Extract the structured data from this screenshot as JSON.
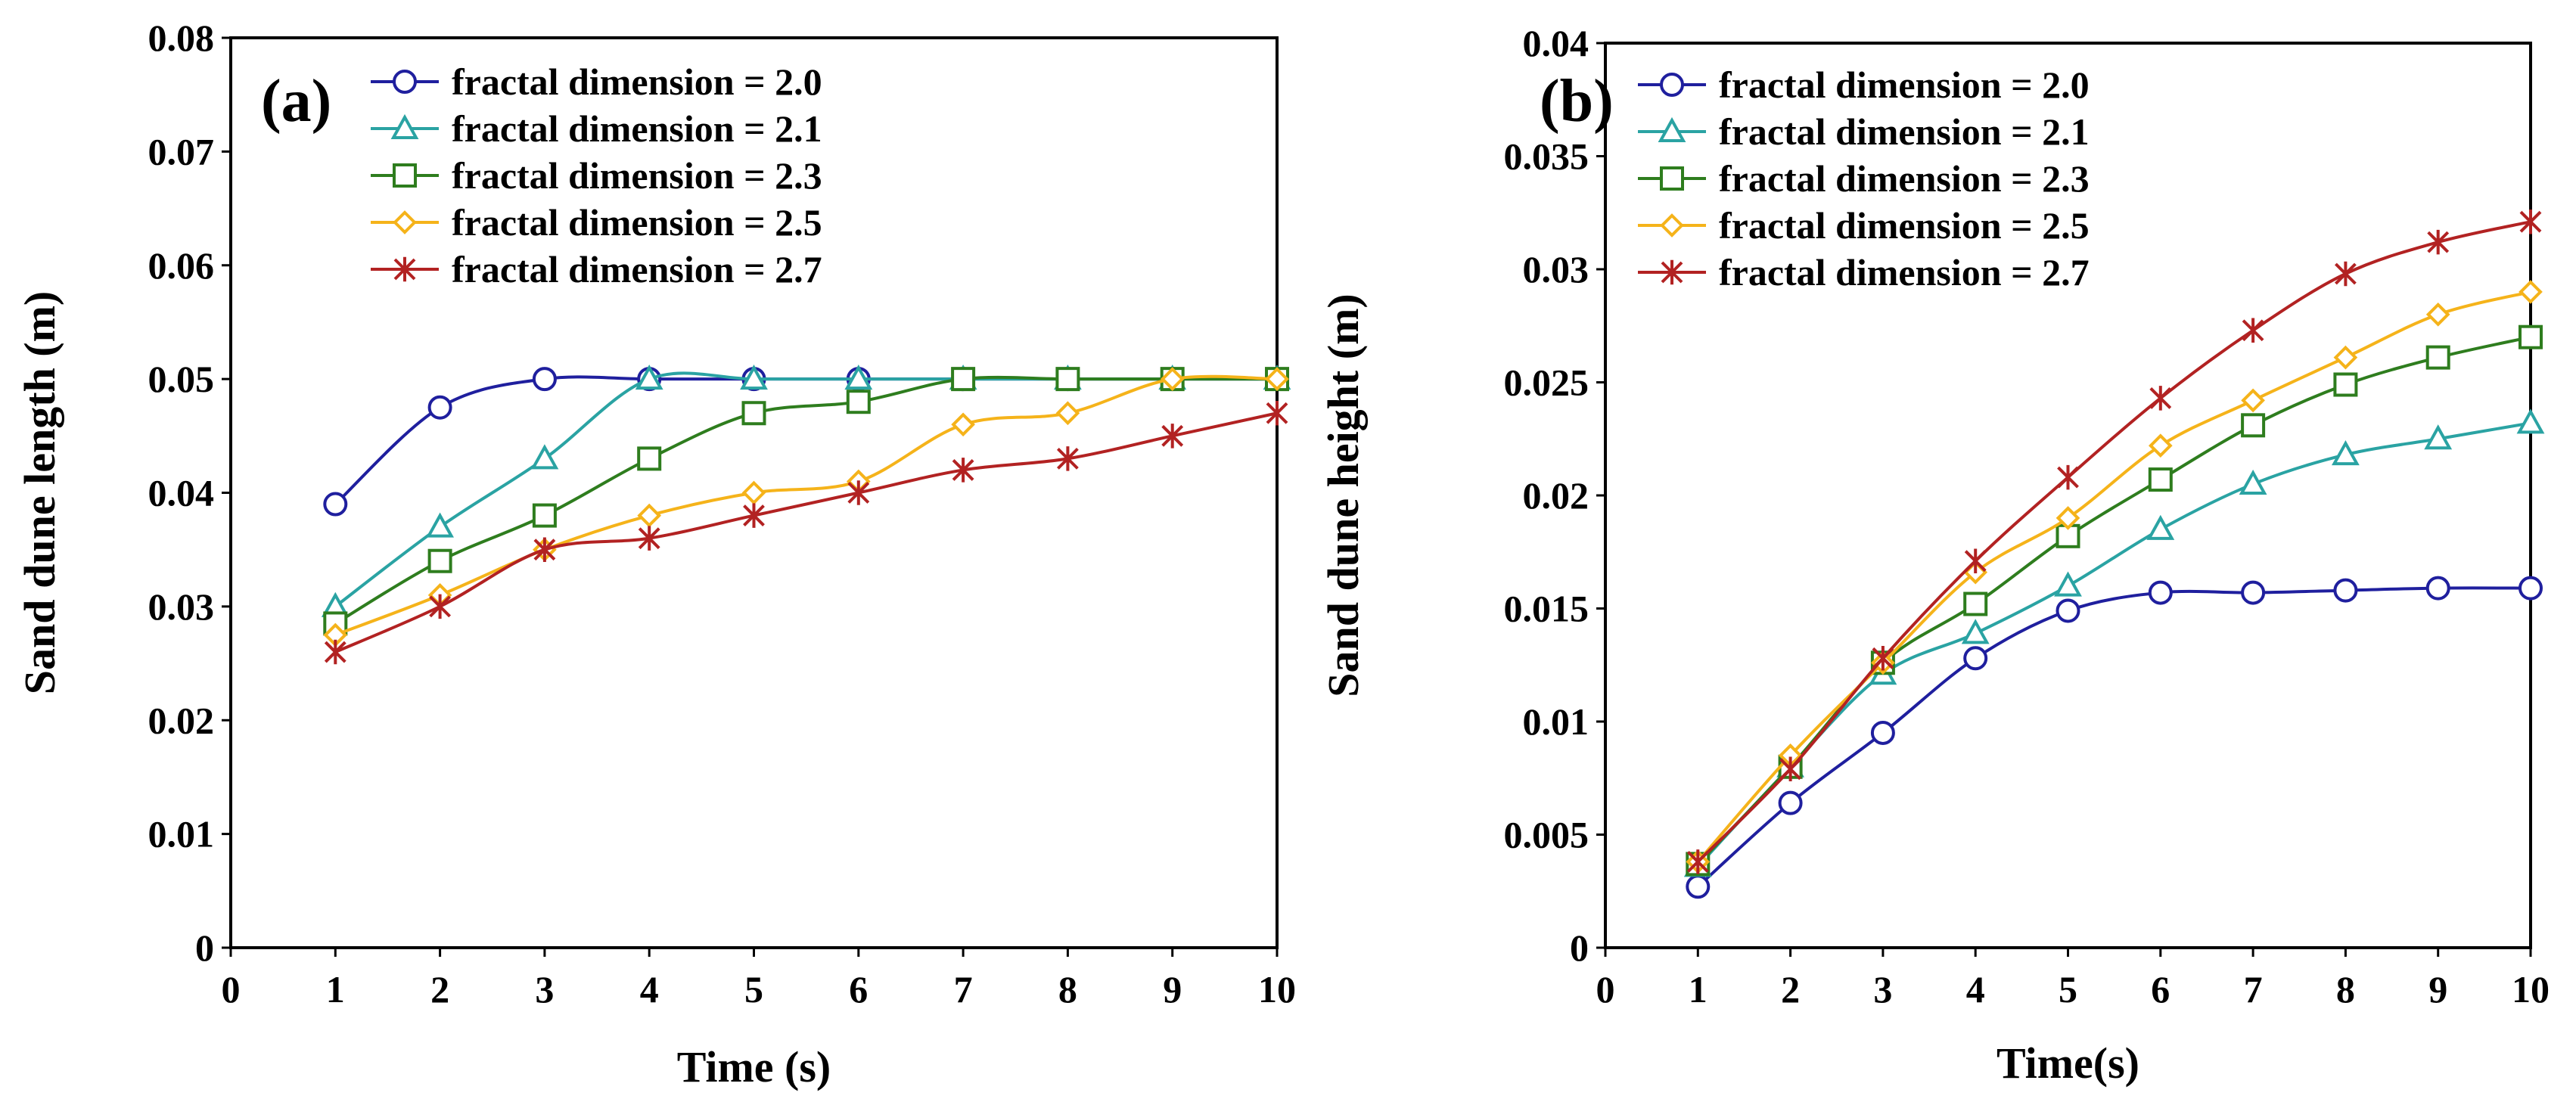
{
  "chart_data": [
    {
      "type": "line",
      "panel_label": "(a)",
      "title": "",
      "xlabel": "Time (s)",
      "ylabel": "Sand dune length (m)",
      "xlim": [
        0,
        10
      ],
      "ylim": [
        0,
        0.08
      ],
      "xticks": [
        "0",
        "1",
        "2",
        "3",
        "4",
        "5",
        "6",
        "7",
        "8",
        "9",
        "10"
      ],
      "yticks": [
        "0",
        "0.01",
        "0.02",
        "0.03",
        "0.04",
        "0.05",
        "0.06",
        "0.07",
        "0.08"
      ],
      "x": [
        1,
        2,
        3,
        4,
        5,
        6,
        7,
        8,
        9,
        10
      ],
      "legend_position": "top-left",
      "series": [
        {
          "name": "fractal dimension = 2.0",
          "color": "#1f1f9e",
          "marker": "circle",
          "values": [
            0.039,
            0.0475,
            0.05,
            0.05,
            0.05,
            0.05,
            0.05,
            0.05,
            0.05,
            0.05
          ]
        },
        {
          "name": "fractal dimension = 2.1",
          "color": "#2aa3a3",
          "marker": "triangle",
          "values": [
            0.03,
            0.037,
            0.043,
            0.05,
            0.05,
            0.05,
            0.05,
            0.05,
            0.05,
            0.05
          ]
        },
        {
          "name": "fractal dimension = 2.3",
          "color": "#2e7d1e",
          "marker": "square",
          "values": [
            0.0285,
            0.034,
            0.038,
            0.043,
            0.047,
            0.048,
            0.05,
            0.05,
            0.05,
            0.05
          ]
        },
        {
          "name": "fractal dimension = 2.5",
          "color": "#f5b31a",
          "marker": "diamond",
          "values": [
            0.0275,
            0.031,
            0.035,
            0.038,
            0.04,
            0.041,
            0.046,
            0.047,
            0.05,
            0.05
          ]
        },
        {
          "name": "fractal dimension = 2.7",
          "color": "#b22222",
          "marker": "star",
          "values": [
            0.026,
            0.03,
            0.035,
            0.036,
            0.038,
            0.04,
            0.042,
            0.043,
            0.045,
            0.047
          ]
        }
      ]
    },
    {
      "type": "line",
      "panel_label": "(b)",
      "title": "",
      "xlabel": "Time(s)",
      "ylabel": "Sand dune height (m)",
      "xlim": [
        0,
        10
      ],
      "ylim": [
        0,
        0.04
      ],
      "xticks": [
        "0",
        "1",
        "2",
        "3",
        "4",
        "5",
        "6",
        "7",
        "8",
        "9",
        "10"
      ],
      "yticks": [
        "0",
        "0.005",
        "0.01",
        "0.015",
        "0.02",
        "0.025",
        "0.03",
        "0.035",
        "0.04"
      ],
      "x": [
        1,
        2,
        3,
        4,
        5,
        6,
        7,
        8,
        9,
        10
      ],
      "legend_position": "top-left",
      "series": [
        {
          "name": "fractal dimension = 2.0",
          "color": "#1f1f9e",
          "marker": "circle",
          "values": [
            0.0027,
            0.0064,
            0.0095,
            0.0128,
            0.0149,
            0.0157,
            0.0157,
            0.0158,
            0.0159,
            0.0159
          ]
        },
        {
          "name": "fractal dimension = 2.1",
          "color": "#2aa3a3",
          "marker": "triangle",
          "values": [
            0.0036,
            0.008,
            0.0121,
            0.0139,
            0.016,
            0.0185,
            0.0205,
            0.0218,
            0.0225,
            0.0232
          ]
        },
        {
          "name": "fractal dimension = 2.3",
          "color": "#2e7d1e",
          "marker": "square",
          "values": [
            0.0037,
            0.008,
            0.0126,
            0.0152,
            0.0182,
            0.0207,
            0.0231,
            0.0249,
            0.0261,
            0.027
          ]
        },
        {
          "name": "fractal dimension = 2.5",
          "color": "#f5b31a",
          "marker": "diamond",
          "values": [
            0.0038,
            0.0085,
            0.0126,
            0.0166,
            0.019,
            0.0222,
            0.0242,
            0.0261,
            0.028,
            0.029
          ]
        },
        {
          "name": "fractal dimension = 2.7",
          "color": "#b22222",
          "marker": "star",
          "values": [
            0.0038,
            0.0079,
            0.0128,
            0.0171,
            0.0208,
            0.0243,
            0.0273,
            0.0298,
            0.0312,
            0.0321
          ]
        }
      ]
    }
  ]
}
